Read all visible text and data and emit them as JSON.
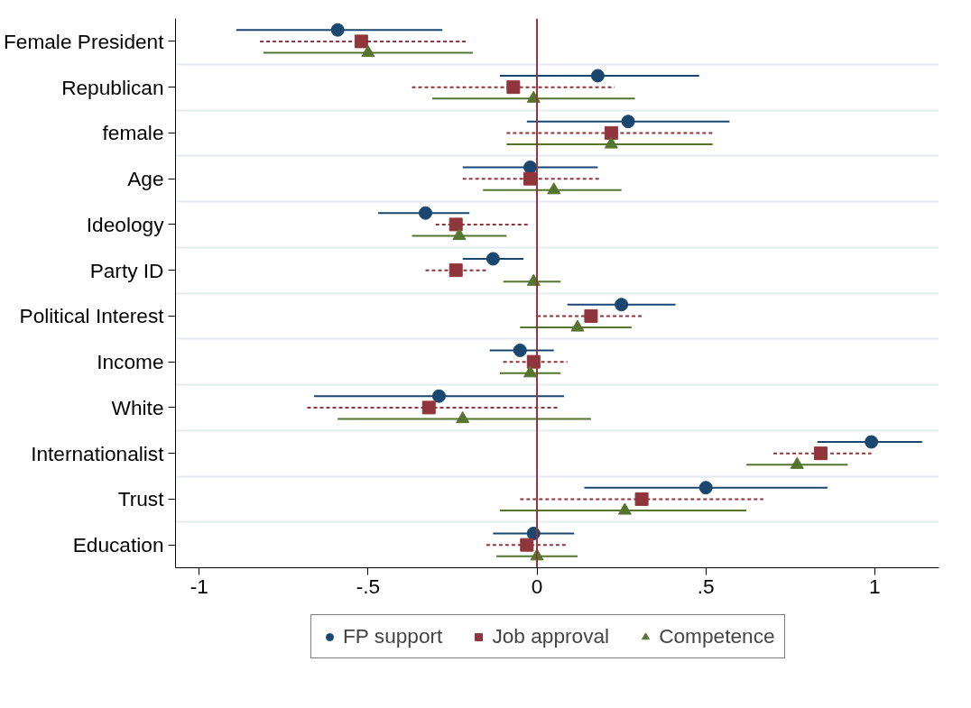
{
  "chart_data": {
    "type": "scatter",
    "orientation": "horizontal",
    "categories": [
      "Female President",
      "Republican",
      "female",
      "Age",
      "Ideology",
      "Party ID",
      "Political Interest",
      "Income",
      "White",
      "Internationalist",
      "Trust",
      "Education"
    ],
    "series": [
      {
        "name": "FP support",
        "color": "#1a476f",
        "marker": "circle",
        "line_style": "solid",
        "values": [
          -0.59,
          0.18,
          0.27,
          -0.02,
          -0.33,
          -0.13,
          0.25,
          -0.05,
          -0.29,
          0.99,
          0.5,
          -0.01
        ],
        "errors": [
          [
            -0.89,
            -0.28
          ],
          [
            -0.11,
            0.48
          ],
          [
            -0.03,
            0.57
          ],
          [
            -0.22,
            0.18
          ],
          [
            -0.47,
            -0.2
          ],
          [
            -0.22,
            -0.04
          ],
          [
            0.09,
            0.41
          ],
          [
            -0.14,
            0.05
          ],
          [
            -0.66,
            0.08
          ],
          [
            0.83,
            1.14
          ],
          [
            0.14,
            0.86
          ],
          [
            -0.13,
            0.11
          ]
        ]
      },
      {
        "name": "Job approval",
        "color": "#90353b",
        "marker": "square",
        "line_style": "dashed",
        "values": [
          -0.52,
          -0.07,
          0.22,
          -0.02,
          -0.24,
          -0.24,
          0.16,
          -0.01,
          -0.32,
          0.84,
          0.31,
          -0.03
        ],
        "errors": [
          [
            -0.82,
            -0.21
          ],
          [
            -0.37,
            0.23
          ],
          [
            -0.09,
            0.52
          ],
          [
            -0.22,
            0.19
          ],
          [
            -0.3,
            -0.02
          ],
          [
            -0.33,
            -0.15
          ],
          [
            0.0,
            0.31
          ],
          [
            -0.1,
            0.09
          ],
          [
            -0.68,
            0.06
          ],
          [
            0.7,
            0.99
          ],
          [
            -0.05,
            0.67
          ],
          [
            -0.15,
            0.09
          ]
        ]
      },
      {
        "name": "Competence",
        "color": "#55752f",
        "marker": "triangle",
        "line_style": "solid",
        "values": [
          -0.5,
          -0.01,
          0.22,
          0.05,
          -0.23,
          -0.01,
          0.12,
          -0.02,
          -0.22,
          0.77,
          0.26,
          0.0
        ],
        "errors": [
          [
            -0.81,
            -0.19
          ],
          [
            -0.31,
            0.29
          ],
          [
            -0.09,
            0.52
          ],
          [
            -0.16,
            0.25
          ],
          [
            -0.37,
            -0.09
          ],
          [
            -0.1,
            0.07
          ],
          [
            -0.05,
            0.28
          ],
          [
            -0.11,
            0.07
          ],
          [
            -0.59,
            0.16
          ],
          [
            0.62,
            0.92
          ],
          [
            -0.11,
            0.62
          ],
          [
            -0.12,
            0.12
          ]
        ]
      }
    ],
    "xlim": [
      -1.07,
      1.19
    ],
    "xticks": [
      {
        "value": -1,
        "label": "-1"
      },
      {
        "value": -0.5,
        "label": "-.5"
      },
      0,
      {
        "value": 0.5,
        "label": ".5"
      },
      1
    ],
    "ref_lines": [
      {
        "axis": "x",
        "value": 0,
        "color": "#90353b"
      }
    ],
    "grid": "y",
    "legend": "bottom"
  }
}
